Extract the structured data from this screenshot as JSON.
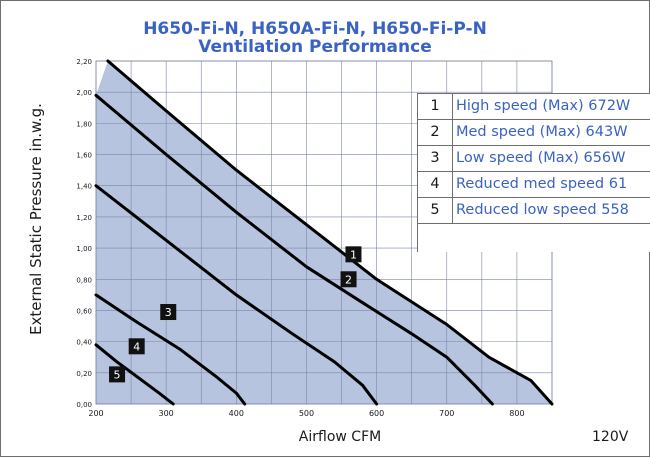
{
  "chart_data": {
    "type": "line",
    "title": "H650-Fi-N, H650A-Fi-N, H650-Fi-P-N",
    "subtitle": "Ventilation Performance",
    "xlabel": "Airflow CFM",
    "ylabel": "External Static Pressure in.w.g.",
    "xlim": [
      200,
      850
    ],
    "ylim": [
      0,
      2.2
    ],
    "x_ticks": [
      "200",
      "300",
      "400",
      "500",
      "600",
      "700",
      "800"
    ],
    "y_ticks": [
      "0,00",
      "0,20",
      "0,40",
      "0,60",
      "0,80",
      "1,00",
      "1,20",
      "1,40",
      "1,60",
      "1,80",
      "2,00",
      "2,20"
    ],
    "grid": true,
    "shaded_region": true,
    "voltage_note": "120V",
    "series": [
      {
        "name": "1",
        "x": [
          217,
          300,
          400,
          500,
          600,
          700,
          760,
          820,
          850
        ],
        "y": [
          2.2,
          1.88,
          1.5,
          1.15,
          0.8,
          0.51,
          0.3,
          0.15,
          0.0
        ]
      },
      {
        "name": "2",
        "x": [
          200,
          300,
          400,
          500,
          580,
          650,
          700,
          740,
          765
        ],
        "y": [
          1.98,
          1.6,
          1.23,
          0.88,
          0.65,
          0.45,
          0.3,
          0.12,
          0.0
        ]
      },
      {
        "name": "3",
        "x": [
          200,
          300,
          400,
          480,
          540,
          580,
          600
        ],
        "y": [
          1.4,
          1.05,
          0.7,
          0.45,
          0.27,
          0.12,
          0.0
        ]
      },
      {
        "name": "4",
        "x": [
          200,
          260,
          320,
          370,
          400,
          412
        ],
        "y": [
          0.7,
          0.52,
          0.35,
          0.18,
          0.07,
          0.0
        ]
      },
      {
        "name": "5",
        "x": [
          200,
          230,
          260,
          290,
          310
        ],
        "y": [
          0.38,
          0.27,
          0.17,
          0.07,
          0.0
        ]
      }
    ],
    "labels": [
      {
        "text": "1",
        "x": 567,
        "y": 0.96
      },
      {
        "text": "2",
        "x": 560,
        "y": 0.8
      },
      {
        "text": "3",
        "x": 303,
        "y": 0.59
      },
      {
        "text": "4",
        "x": 258,
        "y": 0.37
      },
      {
        "text": "5",
        "x": 230,
        "y": 0.19
      }
    ],
    "legend": [
      {
        "num": "1",
        "text": "High speed (Max) 672W"
      },
      {
        "num": "2",
        "text": "Med speed (Max) 643W"
      },
      {
        "num": "3",
        "text": "Low speed (Max) 656W"
      },
      {
        "num": "4",
        "text": "Reduced med speed 61"
      },
      {
        "num": "5",
        "text": "Reduced low speed 558"
      }
    ],
    "colors": {
      "fill": "#b7c4df",
      "grid": "#7c86a6",
      "line": "#000000",
      "title": "#3a62c4"
    }
  }
}
